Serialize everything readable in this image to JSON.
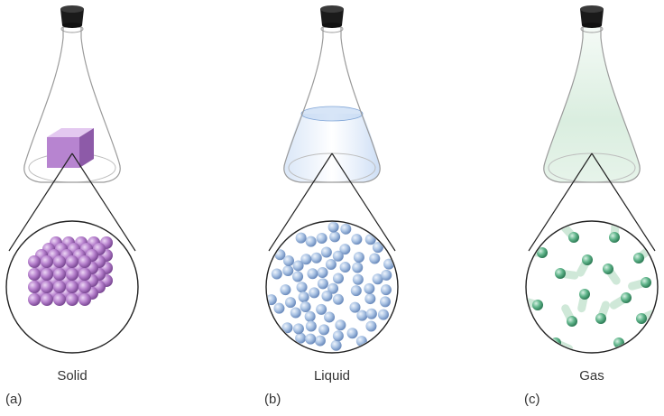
{
  "panels": [
    {
      "letter": "(a)",
      "label": "Solid",
      "state": "solid",
      "colors": {
        "particle": "#b57fcc",
        "particle_light": "#ecd6f5",
        "particle_dark": "#7d4b96",
        "content": "#b98ad0"
      }
    },
    {
      "letter": "(b)",
      "label": "Liquid",
      "state": "liquid",
      "colors": {
        "particle": "#a9c2e3",
        "particle_light": "#eef4fc",
        "particle_dark": "#6c8cbd",
        "content": "#bcd3f2"
      }
    },
    {
      "letter": "(c)",
      "label": "Gas",
      "state": "gas",
      "colors": {
        "particle": "#5fb48a",
        "particle_light": "#d5f0e2",
        "particle_dark": "#2f7d57",
        "content": "#d6ecdc"
      }
    }
  ],
  "stopper_color": "#1a1a1a",
  "outline_color": "#222222"
}
